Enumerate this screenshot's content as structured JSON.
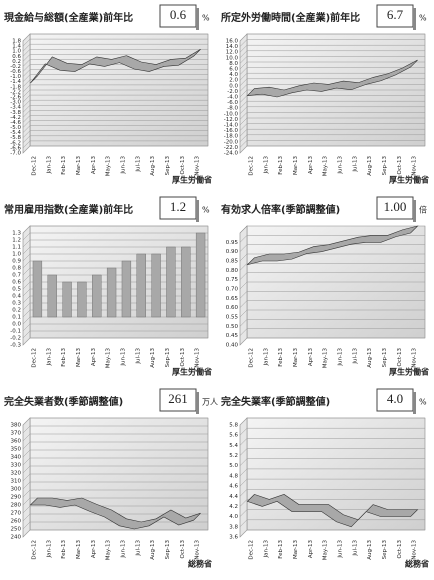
{
  "chart_data": [
    {
      "type": "line",
      "title": "現金給与総額(全産業)前年比",
      "headline": "0.6",
      "unit": "%",
      "source": "厚生労働省",
      "categories": [
        "Dec-12",
        "Jan-13",
        "Feb-13",
        "Mar-13",
        "Apr-13",
        "May-13",
        "Jun-13",
        "Jul-13",
        "Aug-13",
        "Sep-13",
        "Oct-13",
        "Nov-13"
      ],
      "values": [
        -1.5,
        0.0,
        -0.5,
        -0.6,
        0.0,
        -0.2,
        0.1,
        -0.4,
        -0.6,
        -0.2,
        -0.1,
        0.6
      ],
      "ylim": [
        -7,
        1.8
      ],
      "yticks": [
        1.8,
        1.4,
        {
          "value": 1,
          "label": "1.0"
        },
        0.6,
        0.2,
        -0.2,
        -0.6,
        {
          "value": -1,
          "label": "-1.0"
        },
        -1.4,
        -1.8,
        -2.2,
        -2.6,
        {
          "value": -3,
          "label": "-3.0"
        },
        -3.4,
        -3.8,
        -4.2,
        -4.6,
        {
          "value": -5,
          "label": "-5.0"
        },
        -5.4,
        -5.8,
        -6.2,
        -6.6,
        {
          "value": -7,
          "label": "-7.0"
        }
      ],
      "color": "#a8a8a8"
    },
    {
      "type": "line",
      "title": "所定外労働時間(全産業)前年比",
      "headline": "6.7",
      "unit": "%",
      "source": "厚生労働省",
      "categories": [
        "Dec-12",
        "Jan-13",
        "Feb-13",
        "Mar-13",
        "Apr-13",
        "May-13",
        "Jun-13",
        "Jul-13",
        "Aug-13",
        "Sep-13",
        "Oct-13",
        "Nov-13"
      ],
      "values": [
        -3.5,
        -3.0,
        -4.0,
        -2.5,
        -1.5,
        -2.0,
        -0.8,
        -1.4,
        0.5,
        1.8,
        3.9,
        6.7
      ],
      "ylim": [
        -24,
        16
      ],
      "yticks": [
        {
          "value": 16,
          "label": "16.0"
        },
        {
          "value": 14,
          "label": "14.0"
        },
        {
          "value": 12,
          "label": "12.0"
        },
        {
          "value": 10,
          "label": "10.0"
        },
        {
          "value": 8,
          "label": "8.0"
        },
        {
          "value": 6,
          "label": "6.0"
        },
        {
          "value": 4,
          "label": "4.0"
        },
        {
          "value": 2,
          "label": "2.0"
        },
        {
          "value": 0,
          "label": "0.0"
        },
        {
          "value": -2,
          "label": "-2.0"
        },
        {
          "value": -4,
          "label": "-4.0"
        },
        {
          "value": -6,
          "label": "-6.0"
        },
        {
          "value": -8,
          "label": "-8.0"
        },
        {
          "value": -10,
          "label": "-10.0"
        },
        {
          "value": -12,
          "label": "-12.0"
        },
        {
          "value": -14,
          "label": "-14.0"
        },
        {
          "value": -16,
          "label": "-16.0"
        },
        {
          "value": -18,
          "label": "-18.0"
        },
        {
          "value": -20,
          "label": "-20.0"
        },
        {
          "value": -22,
          "label": "-22.0"
        },
        {
          "value": -24,
          "label": "-24.0"
        }
      ],
      "color": "#a8a8a8"
    },
    {
      "type": "bar",
      "title": "常用雇用指数(全産業)前年比",
      "headline": "1.2",
      "unit": "%",
      "source": "厚生労働省",
      "categories": [
        "Dec-12",
        "Jan-13",
        "Feb-13",
        "Mar-13",
        "Apr-13",
        "May-13",
        "Jun-13",
        "Jul-13",
        "Aug-13",
        "Sep-13",
        "Oct-13",
        "Nov-13"
      ],
      "values": [
        0.8,
        0.6,
        0.5,
        0.5,
        0.6,
        0.7,
        0.8,
        0.9,
        0.9,
        1.0,
        1.0,
        1.2
      ],
      "ylim": [
        -0.3,
        1.3
      ],
      "yticks": [
        1.3,
        1.2,
        1.1,
        {
          "value": 1,
          "label": "1.0"
        },
        0.9,
        0.8,
        0.7,
        0.6,
        0.5,
        0.4,
        0.3,
        0.2,
        0.1,
        {
          "value": 0,
          "label": "0.0"
        },
        -0.1,
        -0.2,
        -0.3
      ],
      "color": "#a8a8a8"
    },
    {
      "type": "line",
      "title": "有効求人倍率(季節調整値)",
      "headline": "1.00",
      "unit": "倍",
      "source": "厚生労働省",
      "categories": [
        "Dec-12",
        "Jan-13",
        "Feb-13",
        "Mar-13",
        "Apr-13",
        "May-13",
        "Jun-13",
        "Jul-13",
        "Aug-13",
        "Sep-13",
        "Oct-13",
        "Nov-13"
      ],
      "values": [
        0.83,
        0.85,
        0.85,
        0.86,
        0.89,
        0.9,
        0.92,
        0.94,
        0.95,
        0.95,
        0.98,
        1.0
      ],
      "ylim": [
        0.4,
        1.0
      ],
      "yticks": [
        0.95,
        {
          "value": 0.9,
          "label": "0.90"
        },
        0.85,
        {
          "value": 0.8,
          "label": "0.80"
        },
        0.75,
        {
          "value": 0.7,
          "label": "0.70"
        },
        0.65,
        {
          "value": 0.6,
          "label": "0.60"
        },
        0.55,
        {
          "value": 0.5,
          "label": "0.50"
        },
        0.45,
        {
          "value": 0.4,
          "label": "0.40"
        }
      ],
      "color": "#a8a8a8"
    },
    {
      "type": "line",
      "title": "完全失業者数(季節調整値)",
      "headline": "261",
      "unit": "万人",
      "source": "総務省",
      "categories": [
        "Dec-12",
        "Jan-13",
        "Feb-13",
        "Mar-13",
        "Apr-13",
        "May-13",
        "Jun-13",
        "Jul-13",
        "Aug-13",
        "Sep-13",
        "Oct-13",
        "Nov-13"
      ],
      "values": [
        280,
        280,
        277,
        280,
        272,
        265,
        254,
        250,
        254,
        265,
        255,
        261
      ],
      "ylim": [
        240,
        380
      ],
      "yticks": [
        380,
        370,
        360,
        350,
        340,
        330,
        320,
        310,
        300,
        290,
        280,
        270,
        260,
        250,
        240
      ],
      "color": "#a8a8a8"
    },
    {
      "type": "line",
      "title": "完全失業率(季節調整値)",
      "headline": "4.0",
      "unit": "%",
      "source": "総務省",
      "categories": [
        "Dec-12",
        "Jan-13",
        "Feb-13",
        "Mar-13",
        "Apr-13",
        "May-13",
        "Jun-13",
        "Jul-13",
        "Aug-13",
        "Sep-13",
        "Oct-13",
        "Nov-13"
      ],
      "values": [
        4.3,
        4.2,
        4.3,
        4.1,
        4.1,
        4.1,
        3.9,
        3.8,
        4.1,
        4.0,
        4.0,
        4.0
      ],
      "ylim": [
        3.6,
        5.8
      ],
      "yticks": [
        5.8,
        5.6,
        5.4,
        5.2,
        {
          "value": 5,
          "label": "5.0"
        },
        4.8,
        4.6,
        4.4,
        4.2,
        {
          "value": 4,
          "label": "4.0"
        },
        3.8,
        3.6
      ],
      "color": "#a8a8a8"
    }
  ]
}
